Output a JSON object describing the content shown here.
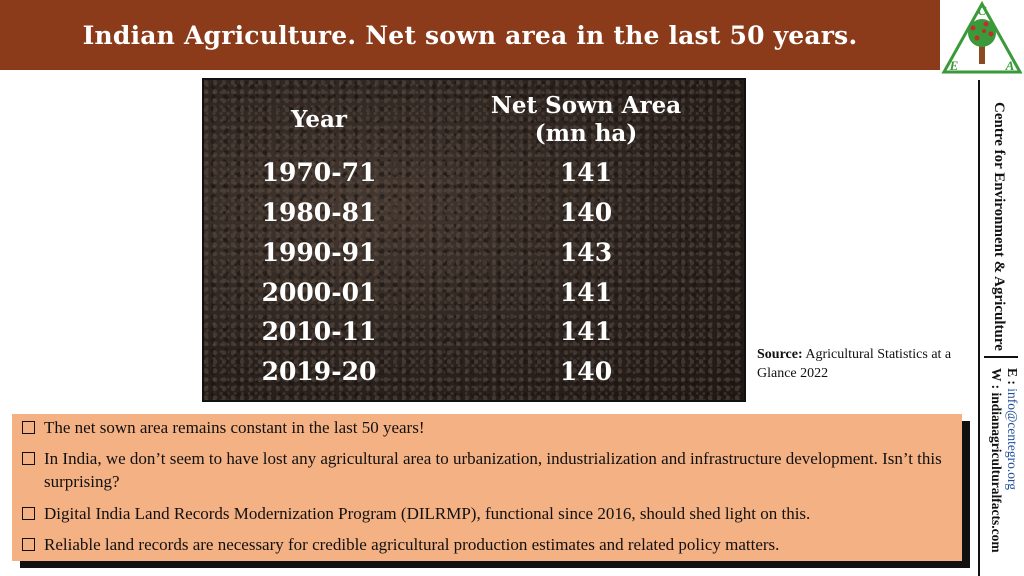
{
  "header": {
    "title": "Indian Agriculture. Net sown area in the last 50 years."
  },
  "logo": {
    "letters": [
      "C",
      "E",
      "A"
    ],
    "colors": {
      "green": "#3a9a3a",
      "red": "#c0302a",
      "brown": "#8b4a22"
    }
  },
  "table": {
    "col_year": "Year",
    "col_area_line1": "Net Sown Area",
    "col_area_line2": "(mn ha)",
    "rows": [
      {
        "year": "1970-71",
        "value": "141"
      },
      {
        "year": "1980-81",
        "value": "140"
      },
      {
        "year": "1990-91",
        "value": "143"
      },
      {
        "year": "2000-01",
        "value": "141"
      },
      {
        "year": "2010-11",
        "value": "141"
      },
      {
        "year": "2019-20",
        "value": "140"
      }
    ]
  },
  "source": {
    "label": "Source:",
    "text": " Agricultural Statistics at a Glance 2022"
  },
  "sidebar": {
    "org_name": "Centre for Environment & Agriculture",
    "email_label": "E : ",
    "email": "info@centegro.org",
    "web_label": "W : ",
    "web": "indianagriculturalfacts.com"
  },
  "notes": [
    "The net sown area remains constant in the last 50 years!",
    "In India, we don’t seem to have lost any agricultural area to urbanization, industrialization and infrastructure development. Isn’t this surprising?",
    "Digital India Land Records Modernization Program (DILRMP), functional since 2016, should shed light on this.",
    "Reliable land records are necessary for credible agricultural production estimates and related policy matters."
  ]
}
